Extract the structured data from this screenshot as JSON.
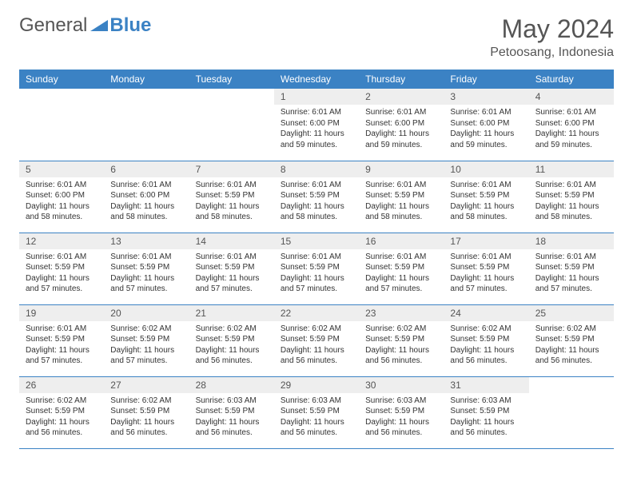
{
  "logo": {
    "text1": "General",
    "text2": "Blue"
  },
  "header": {
    "title": "May 2024",
    "location": "Petoosang, Indonesia"
  },
  "colors": {
    "header_bg": "#3b82c4",
    "header_text": "#ffffff",
    "daynum_bg": "#eeeeee",
    "body_text": "#333333",
    "title_text": "#555555",
    "rule": "#3b82c4"
  },
  "fonts": {
    "title_size": 32,
    "location_size": 16,
    "weekday_size": 12,
    "daynum_size": 12,
    "content_size": 10
  },
  "weekdays": [
    "Sunday",
    "Monday",
    "Tuesday",
    "Wednesday",
    "Thursday",
    "Friday",
    "Saturday"
  ],
  "grid": [
    [
      {
        "num": "",
        "lines": []
      },
      {
        "num": "",
        "lines": []
      },
      {
        "num": "",
        "lines": []
      },
      {
        "num": "1",
        "lines": [
          "Sunrise: 6:01 AM",
          "Sunset: 6:00 PM",
          "Daylight: 11 hours and 59 minutes."
        ]
      },
      {
        "num": "2",
        "lines": [
          "Sunrise: 6:01 AM",
          "Sunset: 6:00 PM",
          "Daylight: 11 hours and 59 minutes."
        ]
      },
      {
        "num": "3",
        "lines": [
          "Sunrise: 6:01 AM",
          "Sunset: 6:00 PM",
          "Daylight: 11 hours and 59 minutes."
        ]
      },
      {
        "num": "4",
        "lines": [
          "Sunrise: 6:01 AM",
          "Sunset: 6:00 PM",
          "Daylight: 11 hours and 59 minutes."
        ]
      }
    ],
    [
      {
        "num": "5",
        "lines": [
          "Sunrise: 6:01 AM",
          "Sunset: 6:00 PM",
          "Daylight: 11 hours and 58 minutes."
        ]
      },
      {
        "num": "6",
        "lines": [
          "Sunrise: 6:01 AM",
          "Sunset: 6:00 PM",
          "Daylight: 11 hours and 58 minutes."
        ]
      },
      {
        "num": "7",
        "lines": [
          "Sunrise: 6:01 AM",
          "Sunset: 5:59 PM",
          "Daylight: 11 hours and 58 minutes."
        ]
      },
      {
        "num": "8",
        "lines": [
          "Sunrise: 6:01 AM",
          "Sunset: 5:59 PM",
          "Daylight: 11 hours and 58 minutes."
        ]
      },
      {
        "num": "9",
        "lines": [
          "Sunrise: 6:01 AM",
          "Sunset: 5:59 PM",
          "Daylight: 11 hours and 58 minutes."
        ]
      },
      {
        "num": "10",
        "lines": [
          "Sunrise: 6:01 AM",
          "Sunset: 5:59 PM",
          "Daylight: 11 hours and 58 minutes."
        ]
      },
      {
        "num": "11",
        "lines": [
          "Sunrise: 6:01 AM",
          "Sunset: 5:59 PM",
          "Daylight: 11 hours and 58 minutes."
        ]
      }
    ],
    [
      {
        "num": "12",
        "lines": [
          "Sunrise: 6:01 AM",
          "Sunset: 5:59 PM",
          "Daylight: 11 hours and 57 minutes."
        ]
      },
      {
        "num": "13",
        "lines": [
          "Sunrise: 6:01 AM",
          "Sunset: 5:59 PM",
          "Daylight: 11 hours and 57 minutes."
        ]
      },
      {
        "num": "14",
        "lines": [
          "Sunrise: 6:01 AM",
          "Sunset: 5:59 PM",
          "Daylight: 11 hours and 57 minutes."
        ]
      },
      {
        "num": "15",
        "lines": [
          "Sunrise: 6:01 AM",
          "Sunset: 5:59 PM",
          "Daylight: 11 hours and 57 minutes."
        ]
      },
      {
        "num": "16",
        "lines": [
          "Sunrise: 6:01 AM",
          "Sunset: 5:59 PM",
          "Daylight: 11 hours and 57 minutes."
        ]
      },
      {
        "num": "17",
        "lines": [
          "Sunrise: 6:01 AM",
          "Sunset: 5:59 PM",
          "Daylight: 11 hours and 57 minutes."
        ]
      },
      {
        "num": "18",
        "lines": [
          "Sunrise: 6:01 AM",
          "Sunset: 5:59 PM",
          "Daylight: 11 hours and 57 minutes."
        ]
      }
    ],
    [
      {
        "num": "19",
        "lines": [
          "Sunrise: 6:01 AM",
          "Sunset: 5:59 PM",
          "Daylight: 11 hours and 57 minutes."
        ]
      },
      {
        "num": "20",
        "lines": [
          "Sunrise: 6:02 AM",
          "Sunset: 5:59 PM",
          "Daylight: 11 hours and 57 minutes."
        ]
      },
      {
        "num": "21",
        "lines": [
          "Sunrise: 6:02 AM",
          "Sunset: 5:59 PM",
          "Daylight: 11 hours and 56 minutes."
        ]
      },
      {
        "num": "22",
        "lines": [
          "Sunrise: 6:02 AM",
          "Sunset: 5:59 PM",
          "Daylight: 11 hours and 56 minutes."
        ]
      },
      {
        "num": "23",
        "lines": [
          "Sunrise: 6:02 AM",
          "Sunset: 5:59 PM",
          "Daylight: 11 hours and 56 minutes."
        ]
      },
      {
        "num": "24",
        "lines": [
          "Sunrise: 6:02 AM",
          "Sunset: 5:59 PM",
          "Daylight: 11 hours and 56 minutes."
        ]
      },
      {
        "num": "25",
        "lines": [
          "Sunrise: 6:02 AM",
          "Sunset: 5:59 PM",
          "Daylight: 11 hours and 56 minutes."
        ]
      }
    ],
    [
      {
        "num": "26",
        "lines": [
          "Sunrise: 6:02 AM",
          "Sunset: 5:59 PM",
          "Daylight: 11 hours and 56 minutes."
        ]
      },
      {
        "num": "27",
        "lines": [
          "Sunrise: 6:02 AM",
          "Sunset: 5:59 PM",
          "Daylight: 11 hours and 56 minutes."
        ]
      },
      {
        "num": "28",
        "lines": [
          "Sunrise: 6:03 AM",
          "Sunset: 5:59 PM",
          "Daylight: 11 hours and 56 minutes."
        ]
      },
      {
        "num": "29",
        "lines": [
          "Sunrise: 6:03 AM",
          "Sunset: 5:59 PM",
          "Daylight: 11 hours and 56 minutes."
        ]
      },
      {
        "num": "30",
        "lines": [
          "Sunrise: 6:03 AM",
          "Sunset: 5:59 PM",
          "Daylight: 11 hours and 56 minutes."
        ]
      },
      {
        "num": "31",
        "lines": [
          "Sunrise: 6:03 AM",
          "Sunset: 5:59 PM",
          "Daylight: 11 hours and 56 minutes."
        ]
      },
      {
        "num": "",
        "lines": []
      }
    ]
  ]
}
